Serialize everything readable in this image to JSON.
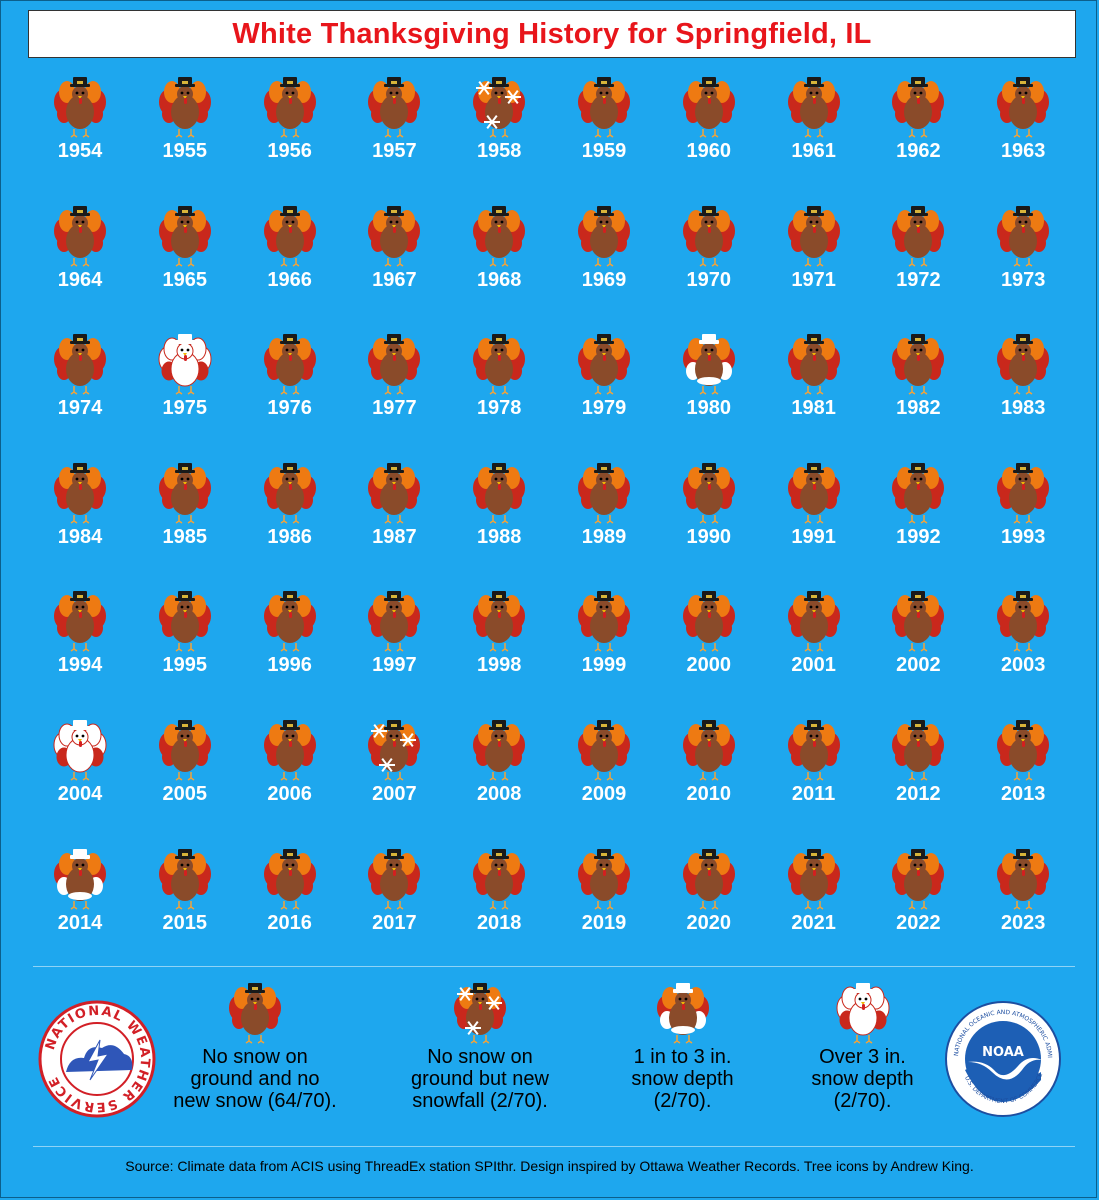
{
  "title": "White Thanksgiving History for Springfield, IL",
  "years": [
    {
      "year": "1954",
      "category": "none"
    },
    {
      "year": "1955",
      "category": "none"
    },
    {
      "year": "1956",
      "category": "none"
    },
    {
      "year": "1957",
      "category": "none"
    },
    {
      "year": "1958",
      "category": "snowfall"
    },
    {
      "year": "1959",
      "category": "none"
    },
    {
      "year": "1960",
      "category": "none"
    },
    {
      "year": "1961",
      "category": "none"
    },
    {
      "year": "1962",
      "category": "none"
    },
    {
      "year": "1963",
      "category": "none"
    },
    {
      "year": "1964",
      "category": "none"
    },
    {
      "year": "1965",
      "category": "none"
    },
    {
      "year": "1966",
      "category": "none"
    },
    {
      "year": "1967",
      "category": "none"
    },
    {
      "year": "1968",
      "category": "none"
    },
    {
      "year": "1969",
      "category": "none"
    },
    {
      "year": "1970",
      "category": "none"
    },
    {
      "year": "1971",
      "category": "none"
    },
    {
      "year": "1972",
      "category": "none"
    },
    {
      "year": "1973",
      "category": "none"
    },
    {
      "year": "1974",
      "category": "none"
    },
    {
      "year": "1975",
      "category": "deep"
    },
    {
      "year": "1976",
      "category": "none"
    },
    {
      "year": "1977",
      "category": "none"
    },
    {
      "year": "1978",
      "category": "none"
    },
    {
      "year": "1979",
      "category": "none"
    },
    {
      "year": "1980",
      "category": "light"
    },
    {
      "year": "1981",
      "category": "none"
    },
    {
      "year": "1982",
      "category": "none"
    },
    {
      "year": "1983",
      "category": "none"
    },
    {
      "year": "1984",
      "category": "none"
    },
    {
      "year": "1985",
      "category": "none"
    },
    {
      "year": "1986",
      "category": "none"
    },
    {
      "year": "1987",
      "category": "none"
    },
    {
      "year": "1988",
      "category": "none"
    },
    {
      "year": "1989",
      "category": "none"
    },
    {
      "year": "1990",
      "category": "none"
    },
    {
      "year": "1991",
      "category": "none"
    },
    {
      "year": "1992",
      "category": "none"
    },
    {
      "year": "1993",
      "category": "none"
    },
    {
      "year": "1994",
      "category": "none"
    },
    {
      "year": "1995",
      "category": "none"
    },
    {
      "year": "1996",
      "category": "none"
    },
    {
      "year": "1997",
      "category": "none"
    },
    {
      "year": "1998",
      "category": "none"
    },
    {
      "year": "1999",
      "category": "none"
    },
    {
      "year": "2000",
      "category": "none"
    },
    {
      "year": "2001",
      "category": "none"
    },
    {
      "year": "2002",
      "category": "none"
    },
    {
      "year": "2003",
      "category": "none"
    },
    {
      "year": "2004",
      "category": "deep"
    },
    {
      "year": "2005",
      "category": "none"
    },
    {
      "year": "2006",
      "category": "none"
    },
    {
      "year": "2007",
      "category": "snowfall"
    },
    {
      "year": "2008",
      "category": "none"
    },
    {
      "year": "2009",
      "category": "none"
    },
    {
      "year": "2010",
      "category": "none"
    },
    {
      "year": "2011",
      "category": "none"
    },
    {
      "year": "2012",
      "category": "none"
    },
    {
      "year": "2013",
      "category": "none"
    },
    {
      "year": "2014",
      "category": "light"
    },
    {
      "year": "2015",
      "category": "none"
    },
    {
      "year": "2016",
      "category": "none"
    },
    {
      "year": "2017",
      "category": "none"
    },
    {
      "year": "2018",
      "category": "none"
    },
    {
      "year": "2019",
      "category": "none"
    },
    {
      "year": "2020",
      "category": "none"
    },
    {
      "year": "2021",
      "category": "none"
    },
    {
      "year": "2022",
      "category": "none"
    },
    {
      "year": "2023",
      "category": "none"
    }
  ],
  "legend": {
    "none": {
      "line1": "No snow on",
      "line2": "ground and no",
      "line3": "new snow (64/70)."
    },
    "snowfall": {
      "line1": "No snow on",
      "line2": "ground but new",
      "line3": "snowfall (2/70)."
    },
    "light": {
      "line1": "1 in to 3 in.",
      "line2": "snow depth",
      "line3": "(2/70)."
    },
    "deep": {
      "line1": "Over 3 in.",
      "line2": "snow depth",
      "line3": "(2/70)."
    }
  },
  "logos": {
    "nws_text": "NATIONAL WEATHER SERVICE",
    "noaa_center": "NOAA",
    "noaa_ring": "NATIONAL OCEANIC AND ATMOSPHERIC ADMINISTRATION",
    "noaa_ring_bottom": "U.S. DEPARTMENT OF COMMERCE"
  },
  "source": "Source: Climate data from ACIS using ThreadEx station SPIthr. Design inspired by Ottawa Weather Records. Tree icons by Andrew King.",
  "colors": {
    "background": "#1ea7ee",
    "title_text": "#e8151b",
    "turkey_body": "#8a4b2a",
    "feather_red": "#c9281c",
    "feather_orange": "#ee7a12",
    "snow": "#ffffff"
  }
}
